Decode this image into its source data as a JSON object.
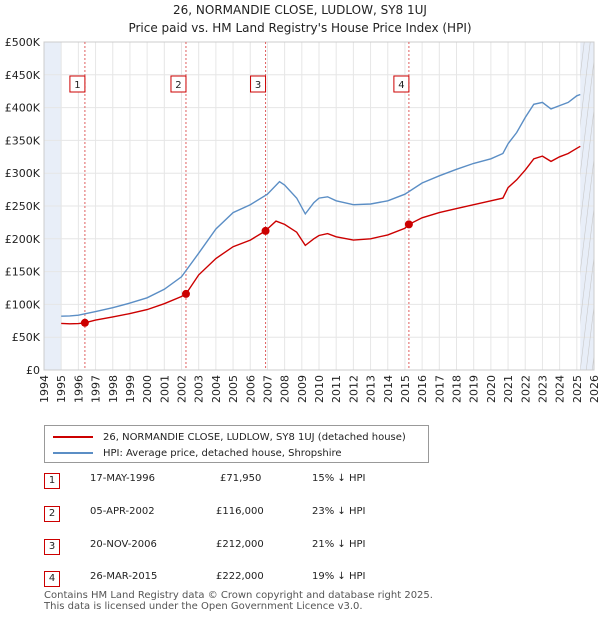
{
  "chart_data": {
    "type": "line",
    "title": "26, NORMANDIE CLOSE, LUDLOW, SY8 1UJ",
    "subtitle": "Price paid vs. HM Land Registry's House Price Index (HPI)",
    "xlim": [
      1994,
      2026
    ],
    "ylim": [
      0,
      500000
    ],
    "x_ticks": [
      "1994",
      "1995",
      "1996",
      "1997",
      "1998",
      "1999",
      "2000",
      "2001",
      "2002",
      "2003",
      "2004",
      "2005",
      "2006",
      "2007",
      "2008",
      "2009",
      "2010",
      "2011",
      "2012",
      "2013",
      "2014",
      "2015",
      "2016",
      "2017",
      "2018",
      "2019",
      "2020",
      "2021",
      "2022",
      "2023",
      "2024",
      "2025",
      "2026"
    ],
    "y_ticks": [
      {
        "value": 0,
        "label": "£0"
      },
      {
        "value": 50000,
        "label": "£50K"
      },
      {
        "value": 100000,
        "label": "£100K"
      },
      {
        "value": 150000,
        "label": "£150K"
      },
      {
        "value": 200000,
        "label": "£200K"
      },
      {
        "value": 250000,
        "label": "£250K"
      },
      {
        "value": 300000,
        "label": "£300K"
      },
      {
        "value": 350000,
        "label": "£350K"
      },
      {
        "value": 400000,
        "label": "£400K"
      },
      {
        "value": 450000,
        "label": "£450K"
      },
      {
        "value": 500000,
        "label": "£500K"
      }
    ],
    "data_start": 1995,
    "data_end": 2025.2,
    "series": [
      {
        "name": "26, NORMANDIE CLOSE, LUDLOW, SY8 1UJ (detached house)",
        "color": "#cc0000",
        "points": [
          [
            1995,
            71000
          ],
          [
            1995.5,
            70500
          ],
          [
            1996,
            70800
          ],
          [
            1996.38,
            71950
          ],
          [
            1997,
            76000
          ],
          [
            1998,
            81000
          ],
          [
            1999,
            86000
          ],
          [
            2000,
            92000
          ],
          [
            2001,
            101000
          ],
          [
            2002,
            112000
          ],
          [
            2002.26,
            116000
          ],
          [
            2003,
            145000
          ],
          [
            2004,
            170000
          ],
          [
            2005,
            188000
          ],
          [
            2006,
            198000
          ],
          [
            2006.89,
            212000
          ],
          [
            2007,
            215000
          ],
          [
            2007.5,
            227000
          ],
          [
            2008,
            222000
          ],
          [
            2008.7,
            210000
          ],
          [
            2009.2,
            190000
          ],
          [
            2009.7,
            200000
          ],
          [
            2010,
            205000
          ],
          [
            2010.5,
            208000
          ],
          [
            2011,
            203000
          ],
          [
            2012,
            198000
          ],
          [
            2013,
            200000
          ],
          [
            2014,
            206000
          ],
          [
            2015,
            216000
          ],
          [
            2015.23,
            222000
          ],
          [
            2016,
            232000
          ],
          [
            2017,
            240000
          ],
          [
            2018,
            246000
          ],
          [
            2019,
            252000
          ],
          [
            2020,
            258000
          ],
          [
            2020.7,
            262000
          ],
          [
            2021,
            278000
          ],
          [
            2021.5,
            290000
          ],
          [
            2022,
            305000
          ],
          [
            2022.5,
            322000
          ],
          [
            2023,
            326000
          ],
          [
            2023.5,
            318000
          ],
          [
            2024,
            325000
          ],
          [
            2024.5,
            330000
          ],
          [
            2025,
            338000
          ],
          [
            2025.2,
            341000
          ]
        ]
      },
      {
        "name": "HPI: Average price, detached house, Shropshire",
        "color": "#5b8ec5",
        "points": [
          [
            1995,
            82000
          ],
          [
            1995.5,
            82500
          ],
          [
            1996,
            83500
          ],
          [
            1997,
            89000
          ],
          [
            1998,
            95000
          ],
          [
            1999,
            102000
          ],
          [
            2000,
            110000
          ],
          [
            2001,
            123000
          ],
          [
            2002,
            142000
          ],
          [
            2003,
            178000
          ],
          [
            2004,
            215000
          ],
          [
            2005,
            240000
          ],
          [
            2006,
            252000
          ],
          [
            2007,
            268000
          ],
          [
            2007.7,
            287000
          ],
          [
            2008,
            282000
          ],
          [
            2008.7,
            262000
          ],
          [
            2009.2,
            238000
          ],
          [
            2009.7,
            255000
          ],
          [
            2010,
            262000
          ],
          [
            2010.5,
            264000
          ],
          [
            2011,
            258000
          ],
          [
            2012,
            252000
          ],
          [
            2013,
            253000
          ],
          [
            2014,
            258000
          ],
          [
            2015,
            268000
          ],
          [
            2016,
            285000
          ],
          [
            2017,
            296000
          ],
          [
            2018,
            306000
          ],
          [
            2019,
            315000
          ],
          [
            2020,
            322000
          ],
          [
            2020.7,
            330000
          ],
          [
            2021,
            345000
          ],
          [
            2021.5,
            362000
          ],
          [
            2022,
            385000
          ],
          [
            2022.5,
            405000
          ],
          [
            2023,
            408000
          ],
          [
            2023.5,
            398000
          ],
          [
            2024,
            403000
          ],
          [
            2024.5,
            408000
          ],
          [
            2025,
            418000
          ],
          [
            2025.2,
            420000
          ]
        ]
      }
    ],
    "sales": [
      {
        "label": "1",
        "x": 1996.38,
        "value": 71950,
        "date": "17-MAY-1996",
        "price": "£71,950",
        "hpi": "15% ↓ HPI"
      },
      {
        "label": "2",
        "x": 2002.26,
        "value": 116000,
        "date": "05-APR-2002",
        "price": "£116,000",
        "hpi": "23% ↓ HPI"
      },
      {
        "label": "3",
        "x": 2006.89,
        "value": 212000,
        "date": "20-NOV-2006",
        "price": "£212,000",
        "hpi": "21% ↓ HPI"
      },
      {
        "label": "4",
        "x": 2015.23,
        "value": 222000,
        "date": "26-MAR-2015",
        "price": "£222,000",
        "hpi": "19% ↓ HPI"
      }
    ]
  },
  "legend": {
    "property_label": "26, NORMANDIE CLOSE, LUDLOW, SY8 1UJ (detached house)",
    "hpi_label": "HPI: Average price, detached house, Shropshire"
  },
  "colors": {
    "property": "#cc0000",
    "hpi": "#5b8ec5",
    "grid": "#e6e6e6",
    "shade": "#e8eef8"
  },
  "footer": {
    "line1": "Contains HM Land Registry data © Crown copyright and database right 2025.",
    "line2": "This data is licensed under the Open Government Licence v3.0."
  }
}
